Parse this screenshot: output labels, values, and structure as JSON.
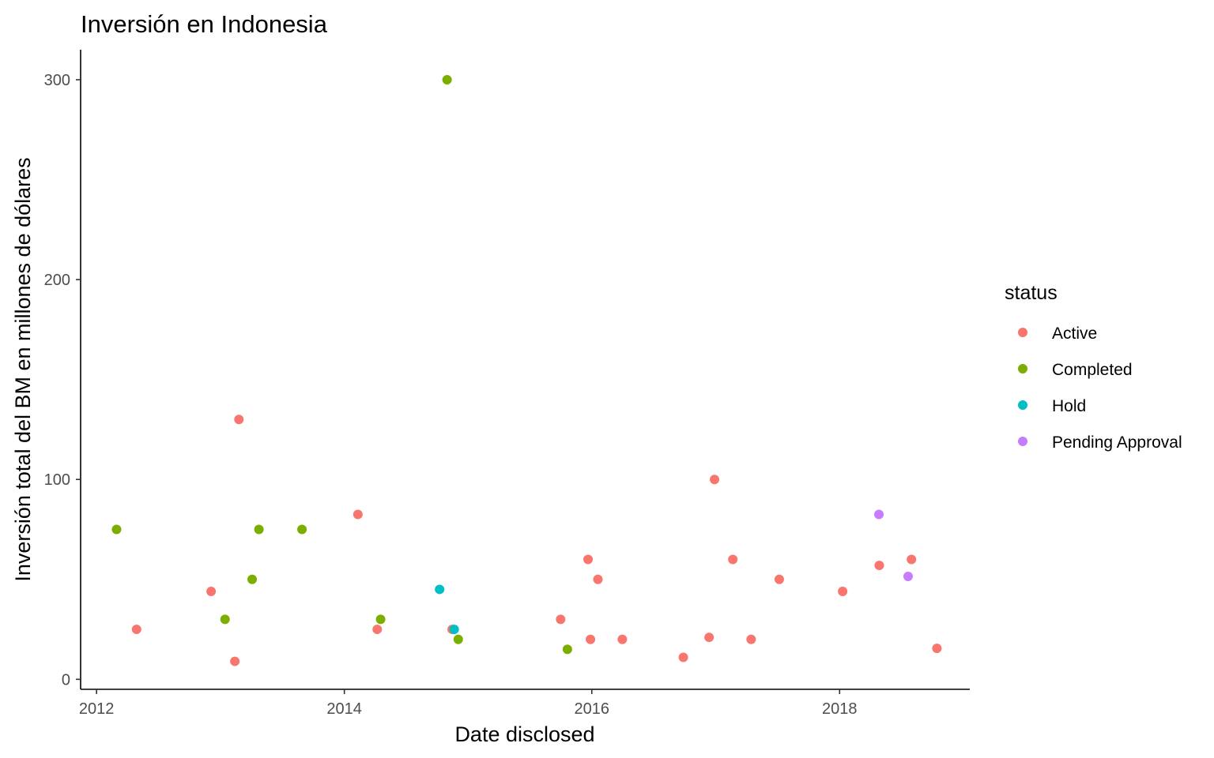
{
  "chart_data": {
    "type": "scatter",
    "title": "Inversión en Indonesia",
    "xlabel": "Date disclosed",
    "ylabel": "Inversión total del BM en millones de dólares",
    "x_scale": "date",
    "xlim": [
      "2011-11-15",
      "2019-01-20"
    ],
    "ylim": [
      -5,
      315
    ],
    "x_ticks": [
      {
        "value": "2012-01-01",
        "label": "2012"
      },
      {
        "value": "2014-01-01",
        "label": "2014"
      },
      {
        "value": "2016-01-01",
        "label": "2016"
      },
      {
        "value": "2018-01-01",
        "label": "2018"
      }
    ],
    "y_ticks": [
      {
        "value": 0,
        "label": "0"
      },
      {
        "value": 100,
        "label": "100"
      },
      {
        "value": 200,
        "label": "200"
      },
      {
        "value": 300,
        "label": "300"
      }
    ],
    "grid": false,
    "legend": {
      "title": "status",
      "placement": "right"
    },
    "series": [
      {
        "name": "Active",
        "color": "#F8766D",
        "points": [
          {
            "x": "2012-04-28",
            "y": 25
          },
          {
            "x": "2012-12-04",
            "y": 44
          },
          {
            "x": "2013-02-12",
            "y": 9
          },
          {
            "x": "2013-02-24",
            "y": 130
          },
          {
            "x": "2014-02-10",
            "y": 82.5
          },
          {
            "x": "2014-04-08",
            "y": 25
          },
          {
            "x": "2014-11-15",
            "y": 25
          },
          {
            "x": "2015-10-01",
            "y": 30
          },
          {
            "x": "2015-12-21",
            "y": 60
          },
          {
            "x": "2015-12-28",
            "y": 20
          },
          {
            "x": "2016-01-19",
            "y": 50
          },
          {
            "x": "2016-03-31",
            "y": 20
          },
          {
            "x": "2016-09-27",
            "y": 11
          },
          {
            "x": "2016-12-12",
            "y": 21
          },
          {
            "x": "2016-12-28",
            "y": 100
          },
          {
            "x": "2017-02-20",
            "y": 60
          },
          {
            "x": "2017-04-15",
            "y": 20
          },
          {
            "x": "2017-07-07",
            "y": 50
          },
          {
            "x": "2018-01-10",
            "y": 44
          },
          {
            "x": "2018-04-28",
            "y": 57
          },
          {
            "x": "2018-08-01",
            "y": 60
          },
          {
            "x": "2018-10-15",
            "y": 15.5
          }
        ]
      },
      {
        "name": "Completed",
        "color": "#7CAE00",
        "points": [
          {
            "x": "2012-02-29",
            "y": 75
          },
          {
            "x": "2013-01-14",
            "y": 30
          },
          {
            "x": "2013-04-04",
            "y": 50
          },
          {
            "x": "2013-04-24",
            "y": 75
          },
          {
            "x": "2013-08-29",
            "y": 75
          },
          {
            "x": "2014-04-18",
            "y": 30
          },
          {
            "x": "2014-10-31",
            "y": 300
          },
          {
            "x": "2014-12-03",
            "y": 20
          },
          {
            "x": "2015-10-21",
            "y": 15
          }
        ]
      },
      {
        "name": "Hold",
        "color": "#00BFC4",
        "points": [
          {
            "x": "2014-10-09",
            "y": 45
          },
          {
            "x": "2014-11-21",
            "y": 25
          }
        ]
      },
      {
        "name": "Pending Approval",
        "color": "#C77CFF",
        "points": [
          {
            "x": "2018-04-27",
            "y": 82.5
          },
          {
            "x": "2018-07-22",
            "y": 51.5
          }
        ]
      }
    ]
  }
}
